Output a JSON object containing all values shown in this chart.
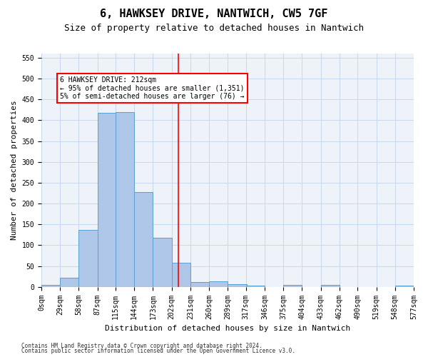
{
  "title": "6, HAWKSEY DRIVE, NANTWICH, CW5 7GF",
  "subtitle": "Size of property relative to detached houses in Nantwich",
  "xlabel": "Distribution of detached houses by size in Nantwich",
  "ylabel": "Number of detached properties",
  "footnote1": "Contains HM Land Registry data © Crown copyright and database right 2024.",
  "footnote2": "Contains public sector information licensed under the Open Government Licence v3.0.",
  "bin_edges": [
    0,
    29,
    58,
    87,
    115,
    144,
    173,
    202,
    231,
    260,
    289,
    317,
    346,
    375,
    404,
    433,
    462,
    490,
    519,
    548,
    577
  ],
  "bin_labels": [
    "0sqm",
    "29sqm",
    "58sqm",
    "87sqm",
    "115sqm",
    "144sqm",
    "173sqm",
    "202sqm",
    "231sqm",
    "260sqm",
    "289sqm",
    "317sqm",
    "346sqm",
    "375sqm",
    "404sqm",
    "433sqm",
    "462sqm",
    "490sqm",
    "519sqm",
    "548sqm",
    "577sqm"
  ],
  "bar_heights": [
    5,
    22,
    137,
    418,
    420,
    227,
    117,
    58,
    12,
    14,
    7,
    3,
    0,
    5,
    0,
    4,
    0,
    0,
    0,
    3
  ],
  "bar_color": "#aec6e8",
  "bar_edge_color": "#5a9fd4",
  "grid_color": "#c8d8ec",
  "background_color": "#eef2f9",
  "property_value": 212,
  "vline_color": "red",
  "annotation_line1": "6 HAWKSEY DRIVE: 212sqm",
  "annotation_line2": "← 95% of detached houses are smaller (1,351)",
  "annotation_line3": "5% of semi-detached houses are larger (76) →",
  "annotation_box_color": "red",
  "ylim": [
    0,
    560
  ],
  "yticks": [
    0,
    50,
    100,
    150,
    200,
    250,
    300,
    350,
    400,
    450,
    500,
    550
  ],
  "title_fontsize": 11,
  "subtitle_fontsize": 9,
  "ylabel_fontsize": 8,
  "xlabel_fontsize": 8,
  "tick_fontsize": 7,
  "annot_fontsize": 7,
  "footnote_fontsize": 5.5
}
